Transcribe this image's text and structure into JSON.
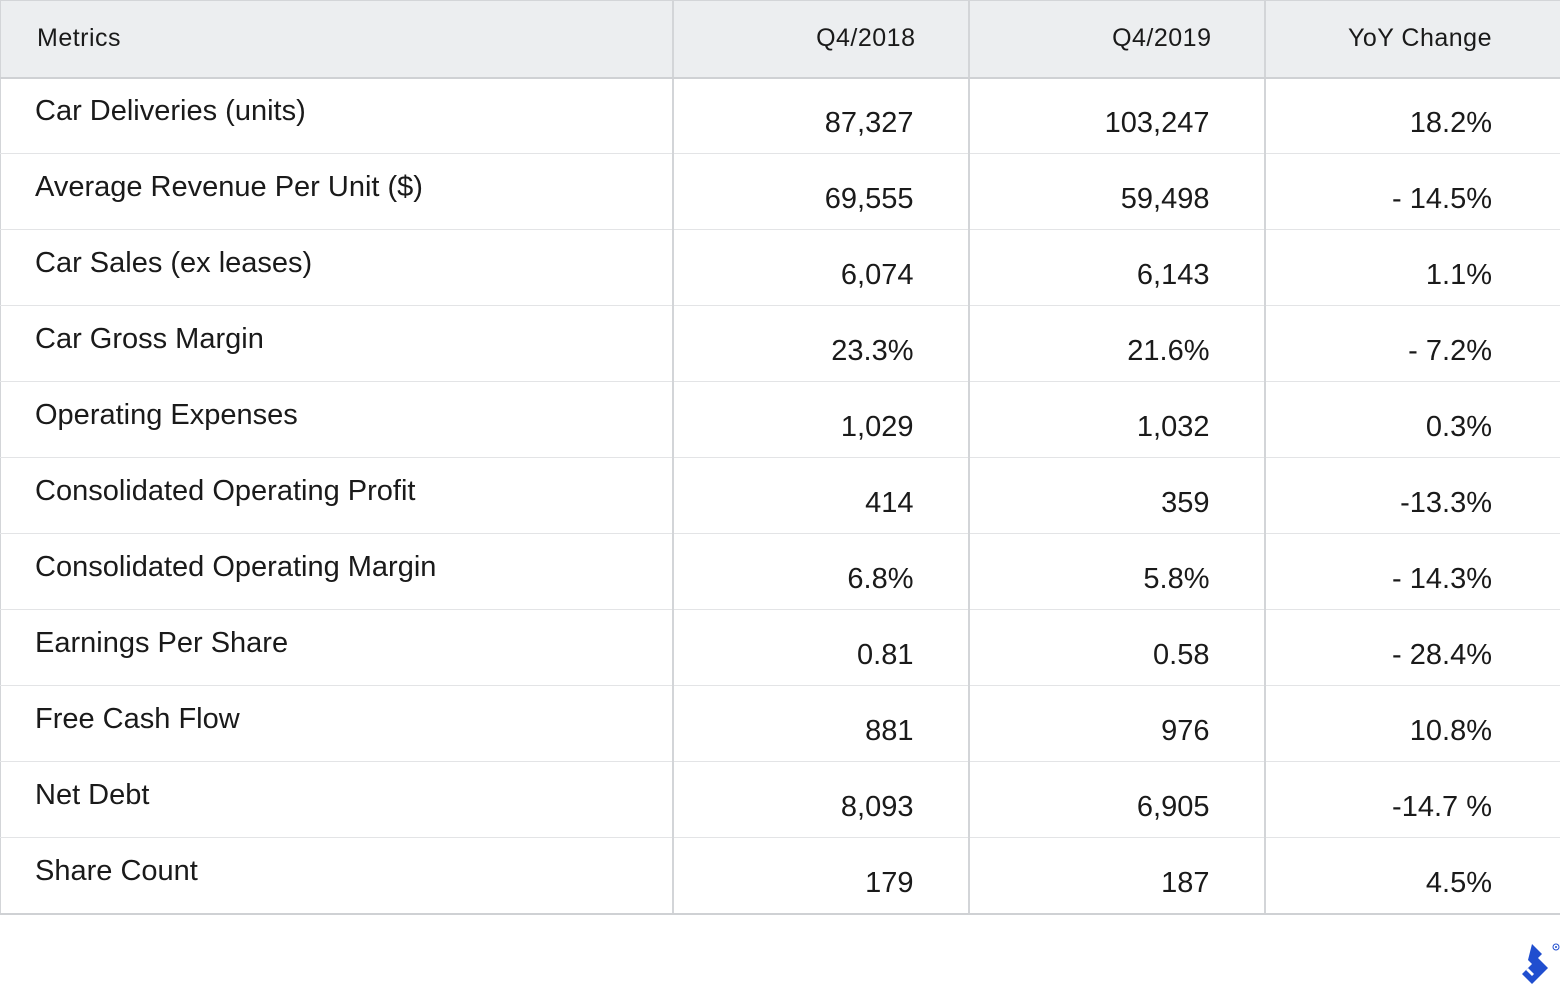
{
  "chart_data": {
    "type": "table",
    "columns": [
      "Metrics",
      "Q4/2018",
      "Q4/2019",
      "YoY Change"
    ],
    "rows": [
      [
        "Car Deliveries (units)",
        "87,327",
        "103,247",
        "18.2%"
      ],
      [
        "Average Revenue Per Unit ($)",
        "69,555",
        "59,498",
        "- 14.5%"
      ],
      [
        "Car Sales (ex leases)",
        "6,074",
        "6,143",
        "1.1%"
      ],
      [
        "Car Gross Margin",
        "23.3%",
        "21.6%",
        "- 7.2%"
      ],
      [
        "Operating Expenses",
        "1,029",
        "1,032",
        "0.3%"
      ],
      [
        "Consolidated Operating Profit",
        "414",
        "359",
        "-13.3%"
      ],
      [
        "Consolidated Operating Margin",
        "6.8%",
        "5.8%",
        "- 14.3%"
      ],
      [
        "Earnings Per Share",
        "0.81",
        "0.58",
        "- 28.4%"
      ],
      [
        "Free Cash Flow",
        "881",
        "976",
        "10.8%"
      ],
      [
        "Net Debt",
        "8,093",
        "6,905",
        "-14.7 %"
      ],
      [
        "Share Count",
        "179",
        "187",
        "4.5%"
      ]
    ]
  },
  "brand": {
    "logo_icon": "toptal-logo-icon",
    "logo_color": "#204ecf",
    "header_bg": "#eceef0",
    "grid_color": "#d3d5d8"
  }
}
